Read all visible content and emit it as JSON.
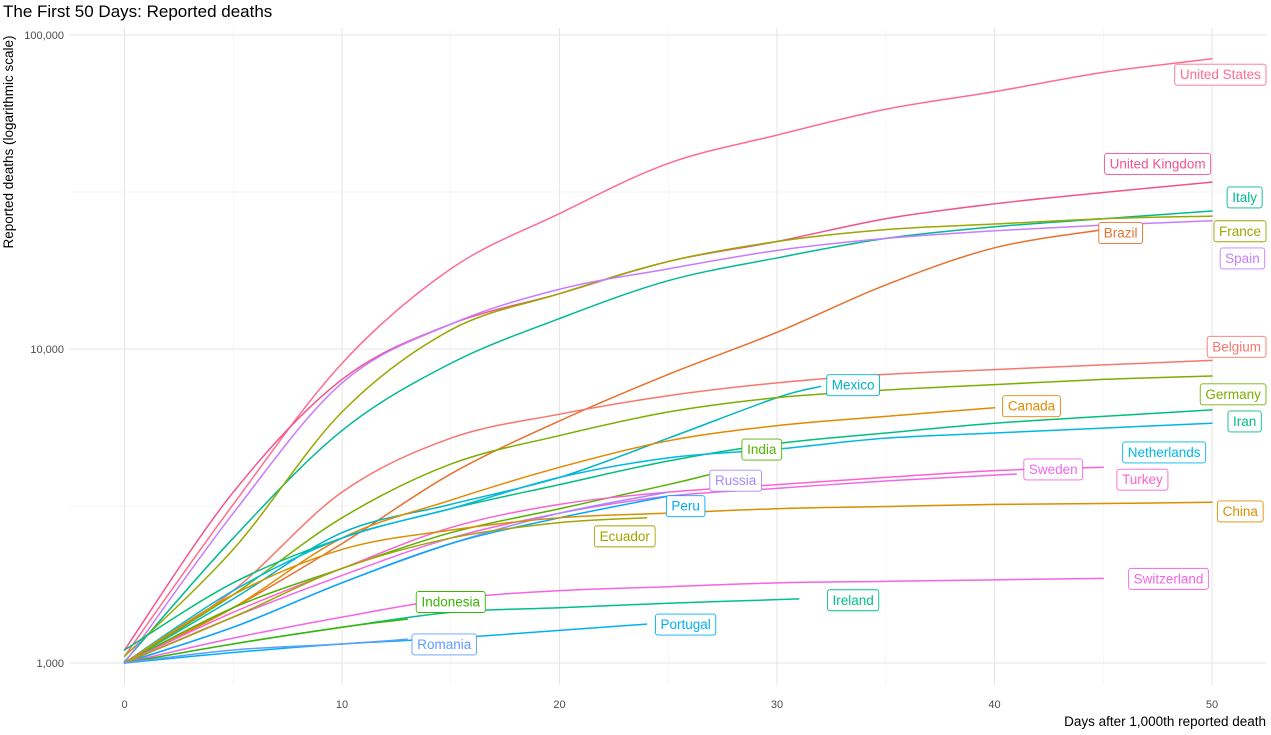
{
  "chart_data": {
    "type": "line",
    "title": "The First 50 Days: Reported deaths",
    "xlabel": "Days after 1,000th reported death",
    "ylabel": "Reported deaths (logarithmic scale)",
    "y_scale": "log",
    "xlim": [
      0,
      52
    ],
    "ylim": [
      1000,
      100000
    ],
    "x_ticks": [
      0,
      10,
      20,
      30,
      40,
      50
    ],
    "x_tick_labels": [
      "0",
      "10",
      "20",
      "30",
      "40",
      "50"
    ],
    "y_ticks": [
      1000,
      10000,
      100000
    ],
    "y_tick_labels": [
      "1,000",
      "10,000",
      "100,000"
    ],
    "grid": true,
    "legend": "none (direct labels at line ends)",
    "series": [
      {
        "name": "United States",
        "color": "#f8766d",
        "label_color": "#ff6c91",
        "x": [
          0,
          5,
          10,
          15,
          20,
          25,
          30,
          35,
          40,
          45,
          50
        ],
        "values": [
          1050,
          3200,
          9000,
          18000,
          27000,
          39000,
          48000,
          58000,
          66000,
          76000,
          84000
        ]
      },
      {
        "name": "United Kingdom",
        "color": "#f2528f",
        "x": [
          0,
          5,
          10,
          15,
          20,
          25,
          30,
          35,
          40,
          45,
          50
        ],
        "values": [
          1100,
          3500,
          8000,
          12000,
          15000,
          19000,
          22000,
          26000,
          29000,
          31500,
          34000
        ]
      },
      {
        "name": "Italy",
        "color": "#00ba94",
        "x": [
          0,
          5,
          10,
          15,
          20,
          25,
          30,
          35,
          40,
          45,
          50
        ],
        "values": [
          1010,
          2500,
          5500,
          9000,
          12500,
          16500,
          19500,
          22500,
          24500,
          26000,
          27500
        ]
      },
      {
        "name": "France",
        "color": "#9aa800",
        "x": [
          0,
          5,
          10,
          15,
          20,
          25,
          30,
          35,
          40,
          45,
          50
        ],
        "values": [
          1050,
          2300,
          6300,
          11500,
          15000,
          19000,
          22000,
          24000,
          25000,
          26000,
          26500
        ]
      },
      {
        "name": "Brazil",
        "color": "#e7722d",
        "x": [
          0,
          5,
          10,
          15,
          20,
          25,
          30,
          35,
          40,
          45
        ],
        "values": [
          1000,
          1500,
          2400,
          4000,
          5900,
          8300,
          11300,
          16000,
          21000,
          24000
        ]
      },
      {
        "name": "Spain",
        "color": "#c77cff",
        "x": [
          0,
          5,
          10,
          15,
          20,
          25,
          30,
          35,
          40,
          45,
          50
        ],
        "values": [
          1000,
          3000,
          7800,
          12000,
          15500,
          18000,
          20600,
          22500,
          23800,
          24800,
          25600
        ]
      },
      {
        "name": "Belgium",
        "color": "#f8766d",
        "x": [
          0,
          5,
          10,
          15,
          20,
          25,
          30,
          35,
          40,
          45,
          50
        ],
        "values": [
          1000,
          1700,
          3500,
          5200,
          6200,
          7100,
          7800,
          8300,
          8600,
          8900,
          9200
        ]
      },
      {
        "name": "Mexico",
        "color": "#00b4c4",
        "x": [
          0,
          5,
          10,
          15,
          20,
          25,
          30,
          32
        ],
        "values": [
          1000,
          1600,
          2600,
          3200,
          3900,
          5200,
          7000,
          7600
        ]
      },
      {
        "name": "Germany",
        "color": "#7cae00",
        "x": [
          0,
          5,
          10,
          15,
          20,
          25,
          30,
          35,
          40,
          45,
          50
        ],
        "values": [
          1000,
          1650,
          2900,
          4300,
          5300,
          6300,
          7000,
          7400,
          7700,
          8000,
          8200
        ]
      },
      {
        "name": "Canada",
        "color": "#e38900",
        "x": [
          0,
          5,
          10,
          15,
          20,
          25,
          30,
          35,
          40
        ],
        "values": [
          1000,
          1500,
          2500,
          3300,
          4200,
          5100,
          5700,
          6100,
          6500
        ]
      },
      {
        "name": "Iran",
        "color": "#00bf7d",
        "x": [
          0,
          5,
          10,
          15,
          20,
          25,
          30,
          35,
          40,
          45,
          50
        ],
        "values": [
          1100,
          1800,
          2500,
          3100,
          3700,
          4400,
          5000,
          5400,
          5800,
          6100,
          6400
        ]
      },
      {
        "name": "Netherlands",
        "color": "#00b8e7",
        "x": [
          0,
          5,
          10,
          15,
          20,
          25,
          30,
          35,
          40,
          45,
          50
        ],
        "values": [
          1000,
          1700,
          2500,
          3100,
          3900,
          4500,
          4800,
          5200,
          5400,
          5600,
          5800
        ]
      },
      {
        "name": "India",
        "color": "#53b400",
        "x": [
          0,
          5,
          10,
          15,
          20,
          25,
          27
        ],
        "values": [
          1000,
          1500,
          2000,
          2600,
          3100,
          3700,
          4000
        ]
      },
      {
        "name": "Sweden",
        "color": "#ef67eb",
        "x": [
          0,
          5,
          10,
          15,
          20,
          25,
          30,
          35,
          41
        ],
        "values": [
          1000,
          1400,
          1900,
          2500,
          3000,
          3400,
          3600,
          3800,
          4000
        ]
      },
      {
        "name": "Turkey",
        "color": "#fd61d1",
        "x": [
          0,
          5,
          10,
          15,
          20,
          25,
          30,
          35,
          40,
          45
        ],
        "values": [
          1000,
          1450,
          2000,
          2700,
          3200,
          3500,
          3700,
          3900,
          4100,
          4200
        ]
      },
      {
        "name": "Russia",
        "color": "#a58aff",
        "x": [
          0,
          5,
          10,
          15,
          20,
          25
        ],
        "values": [
          1000,
          1300,
          1800,
          2400,
          3000,
          3500
        ]
      },
      {
        "name": "Peru",
        "color": "#00a9ff",
        "x": [
          0,
          5,
          10,
          15,
          20,
          25
        ],
        "values": [
          1000,
          1300,
          1800,
          2400,
          2900,
          3400
        ]
      },
      {
        "name": "China",
        "color": "#d89000",
        "x": [
          0,
          5,
          10,
          15,
          20,
          25,
          30,
          35,
          40,
          45,
          50
        ],
        "values": [
          1000,
          1650,
          2300,
          2650,
          2900,
          3000,
          3100,
          3150,
          3200,
          3220,
          3250
        ]
      },
      {
        "name": "Ecuador",
        "color": "#a3a500",
        "x": [
          0,
          5,
          10,
          15,
          20,
          24
        ],
        "values": [
          1000,
          1400,
          2000,
          2500,
          2800,
          2900
        ]
      },
      {
        "name": "Switzerland",
        "color": "#f564e3",
        "x": [
          0,
          5,
          10,
          15,
          20,
          25,
          30,
          35,
          40,
          45
        ],
        "values": [
          1000,
          1200,
          1400,
          1600,
          1700,
          1750,
          1800,
          1820,
          1840,
          1860
        ]
      },
      {
        "name": "Ireland",
        "color": "#00c08b",
        "x": [
          0,
          5,
          10,
          15,
          20,
          25,
          31
        ],
        "values": [
          1000,
          1150,
          1300,
          1450,
          1500,
          1550,
          1600
        ]
      },
      {
        "name": "Indonesia",
        "color": "#39b600",
        "x": [
          0,
          5,
          10,
          13
        ],
        "values": [
          1000,
          1150,
          1300,
          1380
        ]
      },
      {
        "name": "Portugal",
        "color": "#00b0f6",
        "x": [
          0,
          5,
          10,
          15,
          20,
          24
        ],
        "values": [
          1000,
          1080,
          1150,
          1200,
          1270,
          1330
        ]
      },
      {
        "name": "Romania",
        "color": "#619cff",
        "x": [
          0,
          5,
          10,
          13
        ],
        "values": [
          1000,
          1100,
          1150,
          1190
        ]
      }
    ],
    "labels": [
      {
        "name": "United States",
        "x": 50.8,
        "y": 75000
      },
      {
        "name": "United Kingdom",
        "x": 47.5,
        "y": 39000
      },
      {
        "name": "Italy",
        "x": 51.5,
        "y": 30500
      },
      {
        "name": "France",
        "x": 51.3,
        "y": 23800
      },
      {
        "name": "Brazil",
        "x": 45.8,
        "y": 23500
      },
      {
        "name": "Spain",
        "x": 51.4,
        "y": 19500
      },
      {
        "name": "Belgium",
        "x": 51.2,
        "y": 10200
      },
      {
        "name": "Mexico",
        "x": 33.5,
        "y": 7700
      },
      {
        "name": "Germany",
        "x": 51.0,
        "y": 7200
      },
      {
        "name": "Canada",
        "x": 41.7,
        "y": 6600
      },
      {
        "name": "Iran",
        "x": 51.5,
        "y": 5900
      },
      {
        "name": "Netherlands",
        "x": 47.8,
        "y": 4700
      },
      {
        "name": "India",
        "x": 29.3,
        "y": 4800
      },
      {
        "name": "Sweden",
        "x": 42.7,
        "y": 4150
      },
      {
        "name": "Turkey",
        "x": 46.8,
        "y": 3850
      },
      {
        "name": "Russia",
        "x": 28.1,
        "y": 3820
      },
      {
        "name": "Peru",
        "x": 25.8,
        "y": 3170
      },
      {
        "name": "China",
        "x": 51.3,
        "y": 3050
      },
      {
        "name": "Ecuador",
        "x": 23.0,
        "y": 2540
      },
      {
        "name": "Switzerland",
        "x": 48.0,
        "y": 1860
      },
      {
        "name": "Ireland",
        "x": 33.5,
        "y": 1590
      },
      {
        "name": "Indonesia",
        "x": 15.0,
        "y": 1570
      },
      {
        "name": "Portugal",
        "x": 25.8,
        "y": 1330
      },
      {
        "name": "Romania",
        "x": 14.7,
        "y": 1150
      }
    ]
  }
}
